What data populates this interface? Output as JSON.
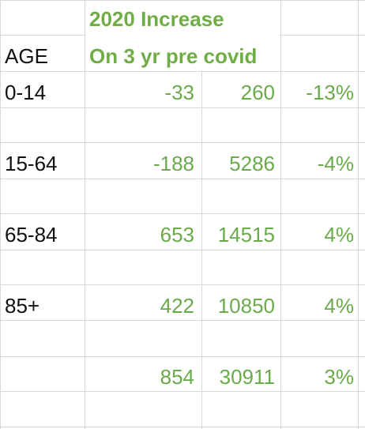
{
  "header": {
    "line1": "2020 Increase",
    "line2": "On 3 yr pre covid"
  },
  "labels": {
    "age": "AGE"
  },
  "rows": [
    {
      "label": "0-14",
      "increase": "-33",
      "total": "260",
      "pct": "-13%"
    },
    {
      "label": "15-64",
      "increase": "-188",
      "total": "5286",
      "pct": "-4%"
    },
    {
      "label": "65-84",
      "increase": "653",
      "total": "14515",
      "pct": "4%"
    },
    {
      "label": "85+",
      "increase": "422",
      "total": "10850",
      "pct": "4%"
    }
  ],
  "totals": {
    "increase": "854",
    "total": "30911",
    "pct": "3%"
  },
  "colors": {
    "header_green": "#70ad47",
    "number_green": "#6aaa4a",
    "gridline": "#d9d9d9"
  }
}
